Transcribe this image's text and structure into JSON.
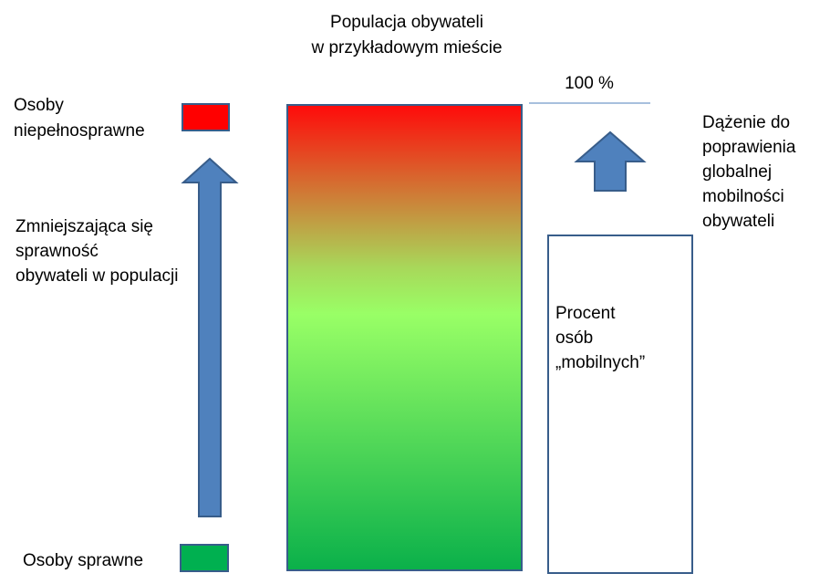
{
  "title": [
    "Populacja obywateli",
    "w przykładowym mieście"
  ],
  "top_label": "100 %",
  "disabled_label": [
    "Osoby",
    "niepełnosprawne"
  ],
  "able_label": "Osoby sprawne",
  "left_text": [
    "Zmniejszająca się",
    " sprawność",
    "obywateli w populacji"
  ],
  "right_text": [
    "Dążenie do",
    "poprawienia",
    "globalnej",
    "mobilności",
    "obywateli"
  ],
  "box_text": [
    "Procent",
    " osób",
    "„mobilnych”"
  ]
}
